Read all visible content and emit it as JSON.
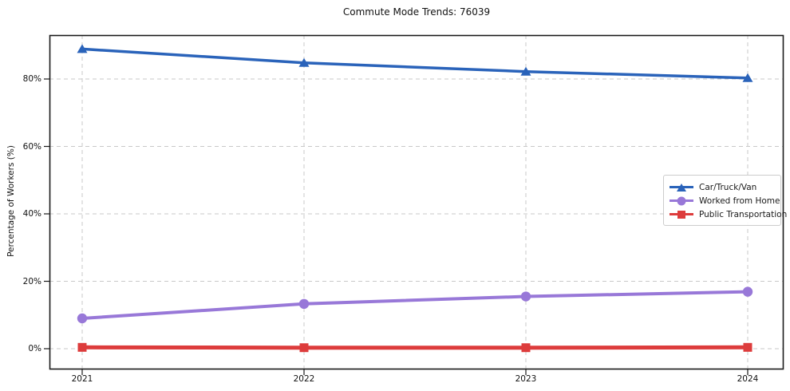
{
  "title": "Commute Mode Trends: 76039",
  "chart_data": {
    "type": "line",
    "title": "Commute Mode Trends: 76039",
    "xlabel": "",
    "ylabel": "Percentage of Workers (%)",
    "categories": [
      "2021",
      "2022",
      "2023",
      "2024"
    ],
    "series": [
      {
        "name": "Car/Truck/Van",
        "marker": "triangle",
        "color": "#2a63ba",
        "values": [
          88.9,
          84.8,
          82.2,
          80.3
        ]
      },
      {
        "name": "Worked from Home",
        "marker": "circle",
        "color": "#9878d8",
        "values": [
          9.0,
          13.3,
          15.5,
          16.9
        ]
      },
      {
        "name": "Public Transportation",
        "marker": "square",
        "color": "#dd3c3c",
        "values": [
          0.4,
          0.3,
          0.3,
          0.4
        ]
      }
    ],
    "ylim": [
      -6.2,
      93
    ],
    "yticks": [
      0,
      20,
      40,
      60,
      80
    ],
    "ytick_labels": [
      "0%",
      "20%",
      "40%",
      "60%",
      "80%"
    ],
    "grid": "dashed",
    "grid_color": "#c9c9c9",
    "spine_color": "#1a1a1a",
    "legend_position": "center-right"
  }
}
